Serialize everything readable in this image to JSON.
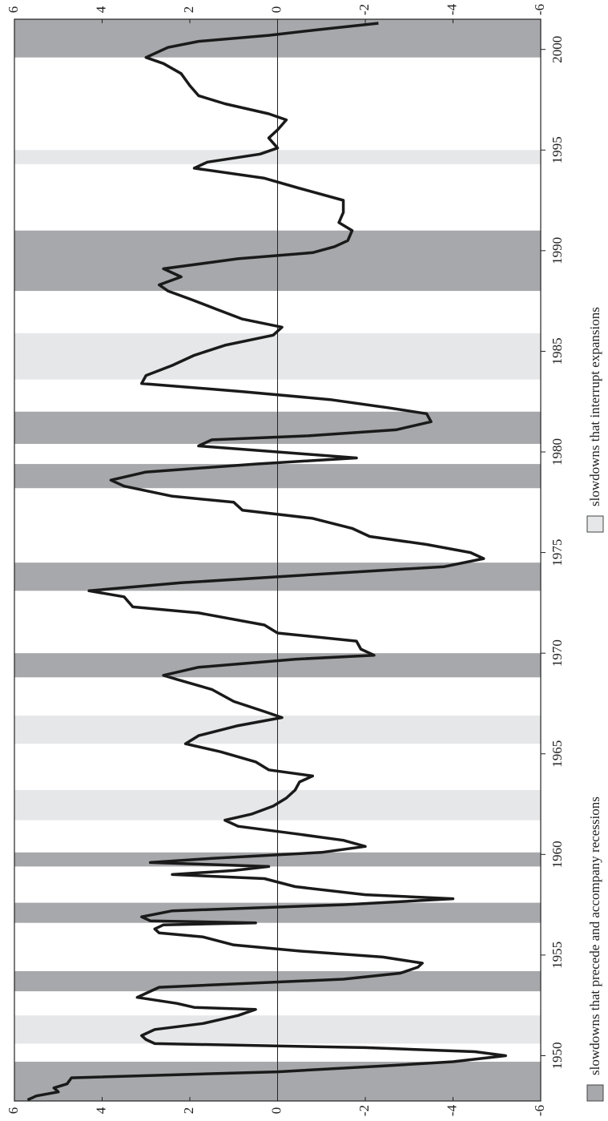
{
  "chart_data": {
    "type": "line",
    "x": [
      1947.8,
      1948.0,
      1948.2,
      1948.4,
      1948.6,
      1948.9,
      1949.2,
      1949.5,
      1949.7,
      1950.0,
      1950.2,
      1950.4,
      1950.6,
      1950.8,
      1951.0,
      1951.3,
      1951.6,
      1952.0,
      1952.3,
      1952.4,
      1952.6,
      1952.9,
      1953.1,
      1953.4,
      1953.8,
      1954.1,
      1954.4,
      1954.6,
      1954.9,
      1955.2,
      1955.5,
      1955.9,
      1956.1,
      1956.3,
      1956.5,
      1956.6,
      1956.7,
      1956.9,
      1957.2,
      1957.5,
      1957.8,
      1958.0,
      1958.4,
      1958.8,
      1959.0,
      1959.2,
      1959.4,
      1959.6,
      1959.8,
      1960.1,
      1960.4,
      1960.7,
      1961.0,
      1961.4,
      1961.7,
      1962.0,
      1962.4,
      1962.8,
      1963.2,
      1963.6,
      1963.9,
      1964.2,
      1964.6,
      1965.1,
      1965.5,
      1965.9,
      1966.4,
      1966.8,
      1967.1,
      1967.6,
      1968.2,
      1968.7,
      1968.9,
      1969.3,
      1969.7,
      1969.9,
      1970.2,
      1970.6,
      1971.0,
      1971.4,
      1972.0,
      1972.3,
      1972.8,
      1973.1,
      1973.5,
      1974.0,
      1974.3,
      1974.7,
      1975.0,
      1975.4,
      1975.8,
      1976.2,
      1976.7,
      1977.1,
      1977.5,
      1977.8,
      1978.3,
      1978.6,
      1979.0,
      1979.4,
      1979.7,
      1979.9,
      1980.3,
      1980.6,
      1980.8,
      1981.1,
      1981.5,
      1981.9,
      1982.2,
      1982.6,
      1983.0,
      1983.4,
      1983.8,
      1984.3,
      1984.8,
      1985.3,
      1985.8,
      1986.2,
      1986.6,
      1987.1,
      1987.6,
      1988.0,
      1988.3,
      1988.7,
      1989.1,
      1989.6,
      1989.9,
      1990.2,
      1990.5,
      1991.0,
      1991.4,
      1991.9,
      1992.5,
      1993.1,
      1993.6,
      1994.1,
      1994.4,
      1994.8,
      1995.1,
      1995.6,
      1996.0,
      1996.5,
      1996.8,
      1997.3,
      1997.7,
      1998.2,
      1998.8,
      1999.3,
      1999.6,
      2000.1,
      2000.4,
      2000.7,
      2001.0,
      2001.3
    ],
    "series": [
      {
        "color": "#1a1a1a",
        "values": [
          5.7,
          5.5,
          5.0,
          5.1,
          4.8,
          4.7,
          0,
          -2.5,
          -4,
          -5.2,
          -4.5,
          -2,
          2.8,
          3.0,
          3.1,
          2.8,
          1.7,
          0.9,
          0.5,
          1.9,
          2.3,
          3.2,
          3.0,
          2.7,
          -1.5,
          -2.8,
          -3.2,
          -3.3,
          -2.4,
          -0.5,
          1.0,
          1.7,
          2.7,
          2.8,
          2.6,
          0.5,
          2.9,
          3.1,
          2.4,
          -1.5,
          -4.0,
          -2,
          -0.4,
          0.3,
          2.4,
          1.0,
          0.2,
          2.9,
          1.5,
          -1,
          -2.0,
          -1.5,
          -0.5,
          0.9,
          1.2,
          0.6,
          0.1,
          -0.2,
          -0.4,
          -0.5,
          -0.8,
          0.2,
          0.5,
          1.3,
          2.1,
          1.8,
          0.9,
          -0.1,
          0.3,
          1.0,
          1.5,
          2.3,
          2.6,
          1.8,
          -0.4,
          -2.2,
          -1.9,
          -1.8,
          0,
          0.3,
          1.8,
          3.3,
          3.5,
          4.3,
          2.2,
          -1.5,
          -3.8,
          -4.7,
          -4.4,
          -3.4,
          -2.1,
          -1.7,
          -0.8,
          0.8,
          1.0,
          2.4,
          3.5,
          3.8,
          3.0,
          0.5,
          -1.8,
          -0.6,
          1.8,
          1.5,
          -0.7,
          -2.7,
          -3.5,
          -3.4,
          -2.5,
          -1.2,
          0.8,
          3.1,
          3.0,
          2.4,
          1.9,
          1.2,
          0.1,
          -0.1,
          0.8,
          1.4,
          2.0,
          2.5,
          2.7,
          2.2,
          2.6,
          0.9,
          -0.8,
          -1.3,
          -1.6,
          -1.7,
          -1.4,
          -1.5,
          -1.5,
          -0.5,
          0.3,
          1.9,
          1.6,
          0.4,
          0,
          0.2,
          0.0,
          -0.2,
          0.2,
          1.2,
          1.8,
          2.0,
          2.2,
          2.6,
          3.0,
          2.5,
          1.8,
          0.2,
          -1.0,
          -2.3
        ]
      }
    ],
    "xlim": [
      1947.75,
      2001.5
    ],
    "xticks": [
      1950,
      1955,
      1960,
      1965,
      1970,
      1975,
      1980,
      1985,
      1990,
      1995,
      2000
    ],
    "ylim": [
      -6,
      6
    ],
    "yticks": [
      -6,
      -4,
      -2,
      0,
      2,
      4,
      6
    ],
    "shading": [
      {
        "name": "slowdowns that precede and accompany recessions",
        "color": "#a7a8ab",
        "spans": [
          [
            1947.75,
            1949.7
          ],
          [
            1953.2,
            1954.2
          ],
          [
            1956.6,
            1957.6
          ],
          [
            1959.4,
            1960.1
          ],
          [
            1968.8,
            1970.0
          ],
          [
            1973.1,
            1974.5
          ],
          [
            1978.2,
            1979.4
          ],
          [
            1980.4,
            1982.0
          ],
          [
            1988.0,
            1991.0
          ],
          [
            1999.6,
            2001.5
          ]
        ]
      },
      {
        "name": "slowdowns that interrupt expansions",
        "color": "#e6e7e8",
        "spans": [
          [
            1950.6,
            1952.0
          ],
          [
            1961.7,
            1963.2
          ],
          [
            1965.5,
            1966.9
          ],
          [
            1983.6,
            1985.9
          ],
          [
            1994.3,
            1995.0
          ]
        ]
      }
    ]
  }
}
